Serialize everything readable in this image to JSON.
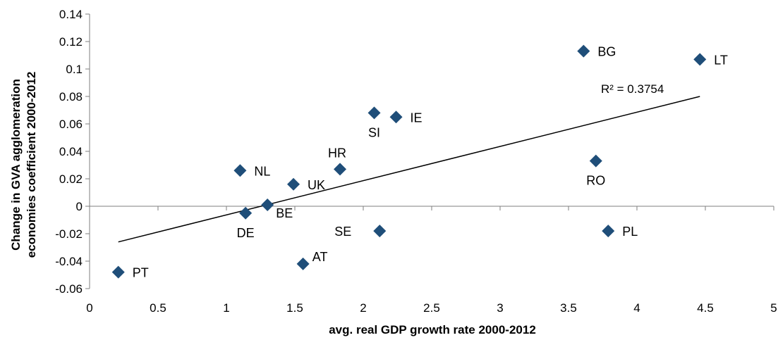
{
  "chart_data": {
    "type": "scatter",
    "xlabel": "avg. real GDP growth rate 2000-2012",
    "ylabel_lines": [
      "Change in GVA agglomeration",
      "economies coefficient 2000-2012"
    ],
    "xlim": [
      0,
      5
    ],
    "ylim": [
      -0.06,
      0.14
    ],
    "x_ticks": [
      0,
      0.5,
      1,
      1.5,
      2,
      2.5,
      3,
      3.5,
      4,
      4.5,
      5
    ],
    "x_tick_labels": [
      "0",
      "0.5",
      "1",
      "1.5",
      "2",
      "2.5",
      "3",
      "3.5",
      "4",
      "4.5",
      "5"
    ],
    "y_ticks": [
      -0.06,
      -0.04,
      -0.02,
      0,
      0.02,
      0.04,
      0.06,
      0.08,
      0.1,
      0.12,
      0.14
    ],
    "y_tick_labels": [
      "-0.06",
      "-0.04",
      "-0.02",
      "0",
      "0.02",
      "0.04",
      "0.06",
      "0.08",
      "0.1",
      "0.12",
      "0.14"
    ],
    "grid": false,
    "marker_color": "#1F4E79",
    "points": [
      {
        "label": "PT",
        "x": 0.21,
        "y": -0.048,
        "label_pos": "right"
      },
      {
        "label": "NL",
        "x": 1.1,
        "y": 0.026,
        "label_pos": "right"
      },
      {
        "label": "DE",
        "x": 1.14,
        "y": -0.005,
        "label_pos": "below"
      },
      {
        "label": "BE",
        "x": 1.3,
        "y": 0.001,
        "label_pos": "below-right"
      },
      {
        "label": "UK",
        "x": 1.49,
        "y": 0.016,
        "label_pos": "right"
      },
      {
        "label": "AT",
        "x": 1.56,
        "y": -0.042,
        "label_pos": "above-right"
      },
      {
        "label": "HR",
        "x": 1.83,
        "y": 0.027,
        "label_pos": "above"
      },
      {
        "label": "SI",
        "x": 2.08,
        "y": 0.068,
        "label_pos": "below"
      },
      {
        "label": "SE",
        "x": 2.12,
        "y": -0.018,
        "label_pos": "left"
      },
      {
        "label": "IE",
        "x": 2.24,
        "y": 0.065,
        "label_pos": "right"
      },
      {
        "label": "BG",
        "x": 3.61,
        "y": 0.113,
        "label_pos": "right"
      },
      {
        "label": "RO",
        "x": 3.7,
        "y": 0.033,
        "label_pos": "below"
      },
      {
        "label": "PL",
        "x": 3.79,
        "y": -0.018,
        "label_pos": "right"
      },
      {
        "label": "LT",
        "x": 4.46,
        "y": 0.107,
        "label_pos": "right"
      }
    ],
    "trendline": {
      "x": [
        0.21,
        4.46
      ],
      "y": [
        -0.026,
        0.08
      ]
    },
    "annotation": "R² = 0.3754"
  }
}
